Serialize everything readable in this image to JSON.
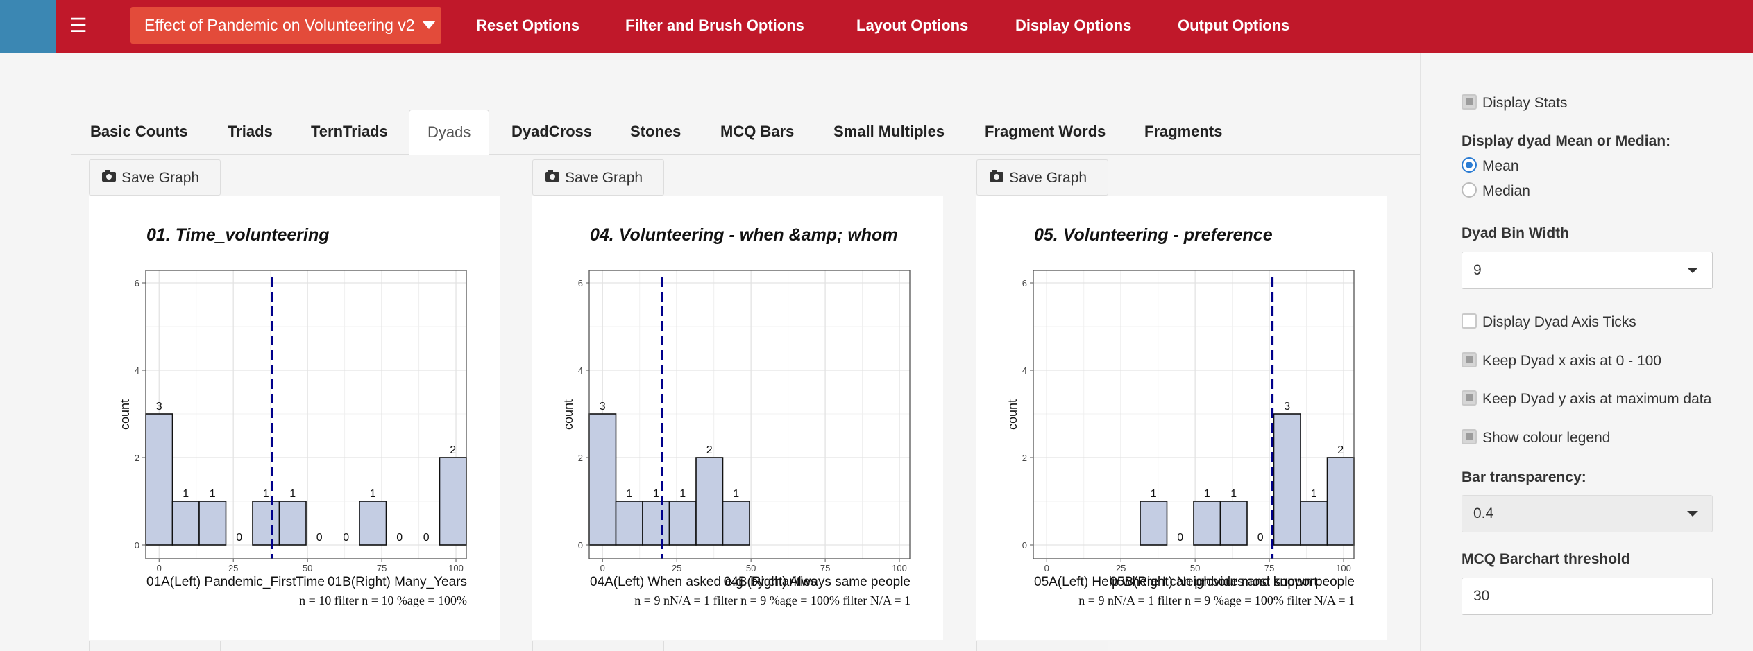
{
  "navbar": {
    "menu_icon": "hamburger-icon",
    "project": "Effect of Pandemic on Volunteering v2",
    "items": [
      "Reset Options",
      "Filter and Brush Options",
      "Layout Options",
      "Display Options",
      "Output Options"
    ]
  },
  "tabs": [
    "Basic Counts",
    "Triads",
    "TernTriads",
    "Dyads",
    "DyadCross",
    "Stones",
    "MCQ Bars",
    "Small Multiples",
    "Fragment Words",
    "Fragments"
  ],
  "active_tab": "Dyads",
  "save_label": "Save Graph",
  "sidebar": {
    "display_stats": "Display Stats",
    "mean_median_label": "Display dyad Mean or Median:",
    "mean": "Mean",
    "median": "Median",
    "bin_width_label": "Dyad Bin Width",
    "bin_width": "9",
    "axis_ticks": "Display Dyad Axis Ticks",
    "keep_x": "Keep Dyad x axis at 0 - 100",
    "keep_y": "Keep Dyad y axis at maximum data",
    "colour_legend": "Show colour legend",
    "transparency_label": "Bar transparency:",
    "transparency": "0.4",
    "mcq_label": "MCQ Barchart threshold",
    "mcq_value": "30"
  },
  "colors": {
    "navbar": "#c0182a",
    "bar_fill": "#c4cde3",
    "mean_line": "#00008b"
  },
  "chart_data": [
    {
      "type": "bar",
      "title": "01. Time_volunteering",
      "ylabel": "count",
      "ylim": [
        0,
        6
      ],
      "xlim": [
        0,
        100
      ],
      "x_ticks": [
        0,
        25,
        50,
        75,
        100
      ],
      "y_ticks": [
        0,
        2,
        4,
        6
      ],
      "bin_centers": [
        0,
        9,
        18,
        27,
        36,
        45,
        54,
        63,
        72,
        81,
        90,
        99
      ],
      "values": [
        3,
        1,
        1,
        0,
        1,
        1,
        0,
        0,
        1,
        0,
        0,
        2
      ],
      "mean": 38,
      "left_label": "01A(Left) Pandemic_FirstTime",
      "right_label": "01B(Right) Many_Years",
      "stats": "n = 10  filter n = 10  %age = 100%"
    },
    {
      "type": "bar",
      "title": "04. Volunteering - when &amp; whom",
      "ylabel": "count",
      "ylim": [
        0,
        6
      ],
      "xlim": [
        0,
        100
      ],
      "x_ticks": [
        0,
        25,
        50,
        75,
        100
      ],
      "y_ticks": [
        0,
        2,
        4,
        6
      ],
      "bin_centers": [
        0,
        9,
        18,
        27,
        36,
        45
      ],
      "values": [
        3,
        1,
        1,
        1,
        2,
        1
      ],
      "mean": 20,
      "left_label": "04A(Left) When asked e.g. by charities",
      "right_label": "04B(Right) Always same people",
      "stats": "n = 9  nN/A = 1  filter n = 9  %age = 100%  filter N/A = 1"
    },
    {
      "type": "bar",
      "title": "05.  Volunteering - preference",
      "ylabel": "count",
      "ylim": [
        0,
        6
      ],
      "xlim": [
        0,
        100
      ],
      "x_ticks": [
        0,
        25,
        50,
        75,
        100
      ],
      "y_ticks": [
        0,
        2,
        4,
        6
      ],
      "bin_centers": [
        36,
        45,
        54,
        63,
        72,
        81,
        90,
        99
      ],
      "values": [
        1,
        0,
        1,
        1,
        0,
        3,
        1,
        2
      ],
      "mean": 76,
      "left_label": "05A(Left) Help where I can provide most support",
      "right_label": "05B(Right) Neighbours and known people",
      "stats": "n = 9  nN/A = 1  filter n = 9  %age = 100%  filter N/A = 1"
    }
  ]
}
